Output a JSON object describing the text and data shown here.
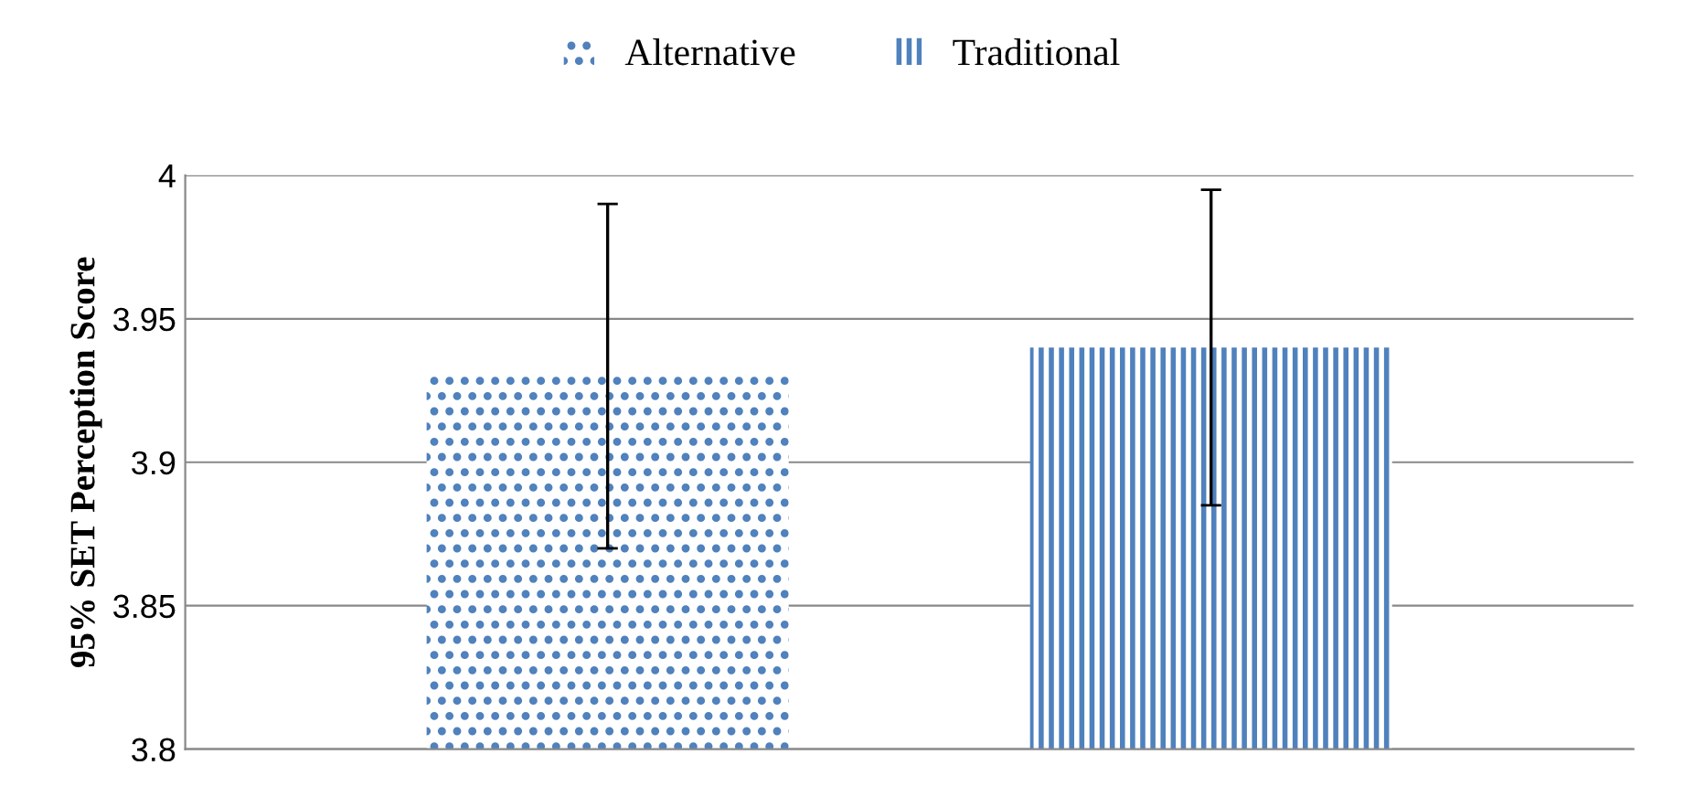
{
  "chart_data": {
    "type": "bar",
    "ylabel": "95% SET Perception Score",
    "categories": [
      null,
      null
    ],
    "series": [
      {
        "name": "Alternative",
        "color": "#4f81bd",
        "values": [
          3.93,
          null
        ],
        "errors": [
          [
            3.87,
            3.99
          ],
          null
        ]
      },
      {
        "name": "Traditional",
        "color": "#4f81bd",
        "values": [
          null,
          3.94
        ],
        "errors": [
          null,
          [
            3.885,
            3.995
          ]
        ]
      }
    ],
    "ylim": [
      3.8,
      4.0
    ],
    "yticks": [
      3.8,
      3.85,
      3.9,
      3.95,
      {
        "value": 4.0,
        "label": "4"
      }
    ],
    "grid": "y",
    "legend": "top"
  }
}
